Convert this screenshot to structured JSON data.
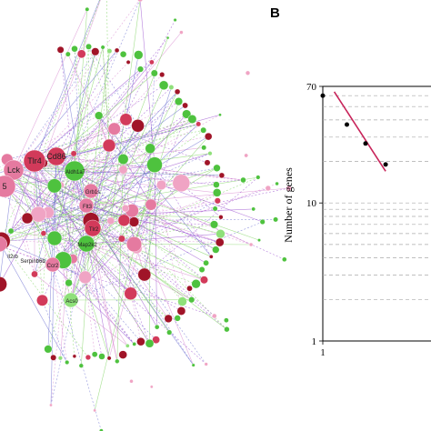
{
  "panel_b": {
    "label": "B"
  },
  "network": {
    "colors": {
      "dark_red": "#a01428",
      "red": "#d23a5a",
      "pink": "#e57aa0",
      "light_pink": "#f0a4c4",
      "green": "#4ec23e",
      "light_green": "#8fe07a",
      "edge_green": "#7ed35f",
      "edge_pink": "#d98ad0",
      "edge_blue": "#6b6fd1",
      "edge_purple": "#9a4fd0"
    },
    "gene_labels": [
      "Tlr4",
      "Lck",
      "Cd86",
      "Aldh1a7",
      "Grb1s",
      "Flt3",
      "Tlr2",
      "Map2k2",
      "Il2rb",
      "Ccr2",
      "Serpinb6b",
      "Acs0",
      "5"
    ]
  },
  "chart_data": {
    "type": "scatter",
    "scale": "log-log",
    "ylabel": "Number of genes",
    "y_ticks": [
      "70",
      "10",
      "1"
    ],
    "x_ticks": [
      "1"
    ],
    "ylim": [
      1,
      70
    ],
    "points": [
      {
        "x": 1.0,
        "y": 60
      },
      {
        "x": 1.6,
        "y": 37
      },
      {
        "x": 2.3,
        "y": 27
      },
      {
        "x": 3.4,
        "y": 19
      }
    ],
    "fit_line": {
      "x": [
        1.25,
        3.4
      ],
      "y": [
        64,
        17
      ],
      "color": "#c8245a"
    }
  }
}
